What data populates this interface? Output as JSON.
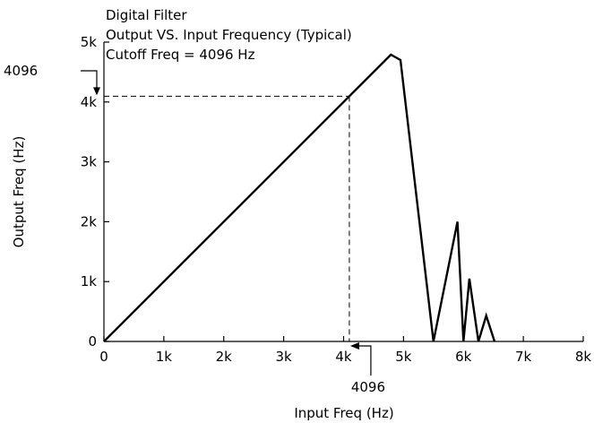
{
  "chart_data": {
    "type": "line",
    "title_lines": [
      "Digital Filter",
      "Output VS. Input Frequency (Typical)",
      "Cutoff Freq = 4096 Hz"
    ],
    "xlabel": "Input Freq (Hz)",
    "ylabel": "Output Freq (Hz)",
    "xlim": [
      0,
      8000
    ],
    "ylim": [
      0,
      5000
    ],
    "x_ticks": [
      {
        "value": 0,
        "label": "0"
      },
      {
        "value": 1000,
        "label": "1k"
      },
      {
        "value": 2000,
        "label": "2k"
      },
      {
        "value": 3000,
        "label": "3k"
      },
      {
        "value": 4000,
        "label": "4k"
      },
      {
        "value": 5000,
        "label": "5k"
      },
      {
        "value": 6000,
        "label": "6k"
      },
      {
        "value": 7000,
        "label": "7k"
      },
      {
        "value": 8000,
        "label": "8k"
      }
    ],
    "y_ticks": [
      {
        "value": 0,
        "label": "0"
      },
      {
        "value": 1000,
        "label": "1k"
      },
      {
        "value": 2000,
        "label": "2k"
      },
      {
        "value": 3000,
        "label": "3k"
      },
      {
        "value": 4000,
        "label": "4k"
      },
      {
        "value": 5000,
        "label": "5k"
      }
    ],
    "grid": false,
    "series": [
      {
        "x": [
          0,
          4096,
          4790,
          4950,
          5500,
          5900,
          6000,
          6100,
          6250,
          6380,
          6520
        ],
        "y": [
          0,
          4096,
          4790,
          4700,
          0,
          2000,
          0,
          1050,
          0,
          430,
          0
        ]
      }
    ],
    "cutoff_guides": {
      "x": 4096,
      "y": 4096
    },
    "annotations": {
      "y_marker": {
        "label": "4096",
        "value": 4096
      },
      "x_marker": {
        "label": "4096",
        "value": 4096
      }
    }
  }
}
